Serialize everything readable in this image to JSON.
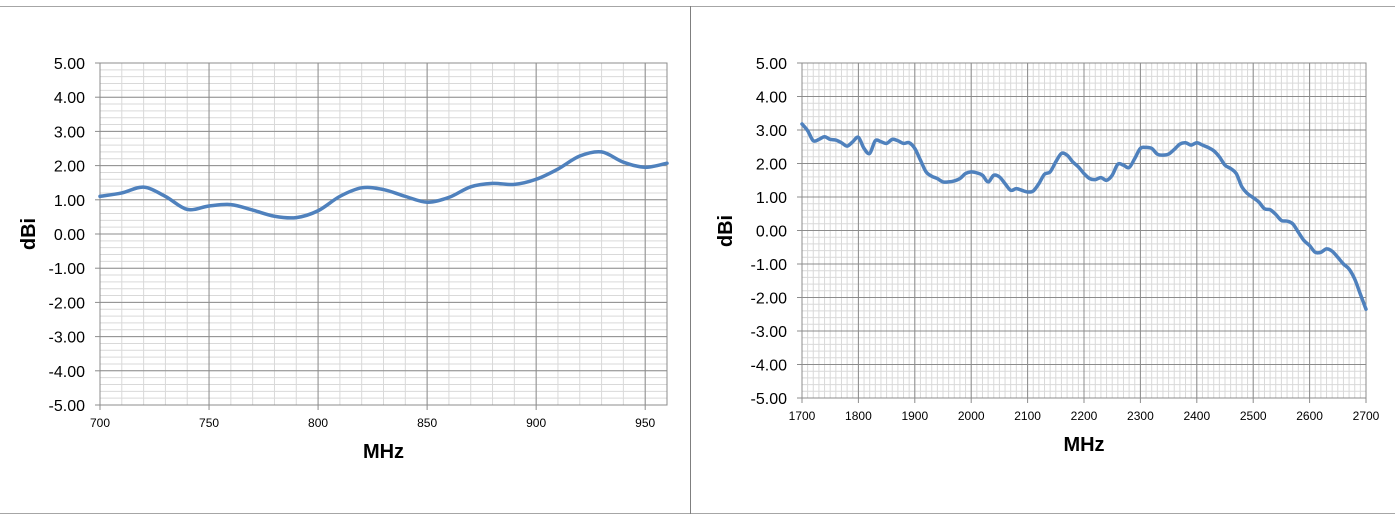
{
  "chart_data": [
    {
      "type": "line",
      "xlabel": "MHz",
      "ylabel": "dBi",
      "xlim": [
        700,
        960
      ],
      "ylim": [
        -5,
        5
      ],
      "x_ticks": [
        700,
        750,
        800,
        850,
        900,
        950
      ],
      "x_tick_labels": [
        "700",
        "750",
        "800",
        "850",
        "900",
        "950"
      ],
      "y_ticks": [
        5,
        4,
        3,
        2,
        1,
        0,
        -1,
        -2,
        -3,
        -4,
        -5
      ],
      "y_tick_labels": [
        "5.00",
        "4.00",
        "3.00",
        "2.00",
        "1.00",
        "0.00",
        "-1.00",
        "-2.00",
        "-3.00",
        "-4.00",
        "-5.00"
      ],
      "grid": true,
      "line_color": "#4f81bd",
      "series": [
        {
          "x": [
            700,
            710,
            720,
            730,
            740,
            750,
            760,
            770,
            780,
            790,
            800,
            810,
            820,
            830,
            840,
            850,
            860,
            870,
            880,
            890,
            900,
            910,
            920,
            930,
            940,
            950,
            960
          ],
          "y": [
            1.1,
            1.2,
            1.37,
            1.1,
            0.72,
            0.82,
            0.86,
            0.7,
            0.52,
            0.48,
            0.68,
            1.1,
            1.35,
            1.3,
            1.1,
            0.93,
            1.07,
            1.38,
            1.48,
            1.45,
            1.6,
            1.9,
            2.28,
            2.4,
            2.1,
            1.95,
            2.07
          ]
        }
      ]
    },
    {
      "type": "line",
      "xlabel": "MHz",
      "ylabel": "dBi",
      "xlim": [
        1700,
        2700
      ],
      "ylim": [
        -5,
        5
      ],
      "x_ticks": [
        1700,
        1800,
        1900,
        2000,
        2100,
        2200,
        2300,
        2400,
        2500,
        2600,
        2700
      ],
      "x_tick_labels": [
        "1700",
        "1800",
        "1900",
        "2000",
        "2100",
        "2200",
        "2300",
        "2400",
        "2500",
        "2600",
        "2700"
      ],
      "y_ticks": [
        5,
        4,
        3,
        2,
        1,
        0,
        -1,
        -2,
        -3,
        -4,
        -5
      ],
      "y_tick_labels": [
        "5.00",
        "4.00",
        "3.00",
        "2.00",
        "1.00",
        "0.00",
        "-1.00",
        "-2.00",
        "-3.00",
        "-4.00",
        "-5.00"
      ],
      "grid": true,
      "line_color": "#4f81bd",
      "series": [
        {
          "x": [
            1700,
            1710,
            1720,
            1730,
            1740,
            1750,
            1760,
            1770,
            1780,
            1790,
            1800,
            1810,
            1820,
            1830,
            1840,
            1850,
            1860,
            1870,
            1880,
            1890,
            1900,
            1910,
            1920,
            1930,
            1940,
            1950,
            1960,
            1970,
            1980,
            1990,
            2000,
            2010,
            2020,
            2030,
            2040,
            2050,
            2060,
            2070,
            2080,
            2090,
            2100,
            2110,
            2120,
            2130,
            2140,
            2150,
            2160,
            2170,
            2180,
            2190,
            2200,
            2210,
            2220,
            2230,
            2240,
            2250,
            2260,
            2270,
            2280,
            2290,
            2300,
            2310,
            2320,
            2330,
            2340,
            2350,
            2360,
            2370,
            2380,
            2390,
            2400,
            2410,
            2420,
            2430,
            2440,
            2450,
            2460,
            2470,
            2480,
            2490,
            2500,
            2510,
            2520,
            2530,
            2540,
            2550,
            2560,
            2570,
            2580,
            2590,
            2600,
            2610,
            2620,
            2630,
            2640,
            2650,
            2660,
            2670,
            2680,
            2690,
            2700
          ],
          "y": [
            3.18,
            2.98,
            2.68,
            2.72,
            2.8,
            2.72,
            2.7,
            2.62,
            2.52,
            2.65,
            2.78,
            2.45,
            2.3,
            2.68,
            2.65,
            2.6,
            2.72,
            2.68,
            2.6,
            2.62,
            2.45,
            2.1,
            1.75,
            1.62,
            1.55,
            1.45,
            1.45,
            1.48,
            1.55,
            1.7,
            1.75,
            1.72,
            1.65,
            1.45,
            1.65,
            1.6,
            1.4,
            1.2,
            1.25,
            1.2,
            1.15,
            1.18,
            1.4,
            1.68,
            1.75,
            2.05,
            2.3,
            2.25,
            2.05,
            1.9,
            1.7,
            1.55,
            1.52,
            1.58,
            1.5,
            1.65,
            1.98,
            1.95,
            1.88,
            2.15,
            2.45,
            2.48,
            2.45,
            2.28,
            2.25,
            2.28,
            2.42,
            2.58,
            2.62,
            2.55,
            2.62,
            2.55,
            2.48,
            2.38,
            2.2,
            1.95,
            1.85,
            1.7,
            1.3,
            1.1,
            0.98,
            0.85,
            0.65,
            0.62,
            0.48,
            0.3,
            0.28,
            0.2,
            -0.05,
            -0.3,
            -0.45,
            -0.65,
            -0.65,
            -0.55,
            -0.62,
            -0.8,
            -1.0,
            -1.15,
            -1.45,
            -1.9,
            -2.35
          ]
        }
      ]
    }
  ]
}
